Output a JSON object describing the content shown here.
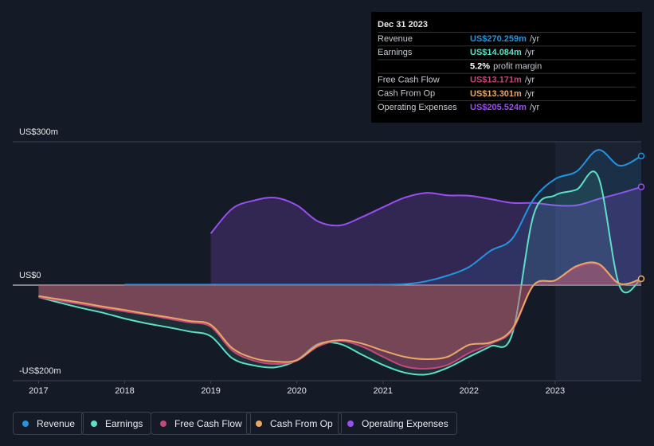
{
  "chart_data": {
    "type": "line",
    "x": [
      2017,
      2017.25,
      2017.5,
      2017.75,
      2018,
      2018.25,
      2018.5,
      2018.75,
      2019,
      2019.25,
      2019.5,
      2019.75,
      2020,
      2020.25,
      2020.5,
      2020.75,
      2021,
      2021.25,
      2021.5,
      2021.75,
      2022,
      2022.25,
      2022.5,
      2022.75,
      2023,
      2023.25,
      2023.5,
      2023.75,
      2024
    ],
    "xlim": [
      2016.7,
      2024.0
    ],
    "xticks": [
      2017,
      2018,
      2019,
      2020,
      2021,
      2022,
      2023
    ],
    "ylim": [
      -200,
      300
    ],
    "yticks": [
      {
        "value": 300,
        "label": "US$300m"
      },
      {
        "value": 0,
        "label": "US$0"
      },
      {
        "value": -200,
        "label": "-US$200m"
      }
    ],
    "series": [
      {
        "name": "Revenue",
        "color": "#2394df",
        "values": [
          null,
          null,
          null,
          null,
          1,
          1,
          1,
          1,
          1,
          1,
          1,
          1,
          1,
          1,
          1,
          1,
          1,
          2,
          8,
          20,
          38,
          72,
          97,
          180,
          222,
          238,
          283,
          250,
          270.259
        ]
      },
      {
        "name": "Earnings",
        "color": "#5de0c6",
        "values": [
          -25,
          -37,
          -48,
          -58,
          -70,
          -80,
          -88,
          -97,
          -107,
          -153,
          -168,
          -172,
          -157,
          -123,
          -123,
          -145,
          -167,
          -183,
          -187,
          -173,
          -150,
          -128,
          -103,
          147,
          188,
          200,
          227,
          -3,
          14.084
        ]
      },
      {
        "name": "Free Cash Flow",
        "color": "#c4487a",
        "values": [
          -25,
          -33,
          -40,
          -48,
          -55,
          -62,
          -70,
          -78,
          -87,
          -137,
          -158,
          -165,
          -158,
          -128,
          -117,
          -128,
          -150,
          -170,
          -175,
          -167,
          -142,
          -123,
          -95,
          0,
          10,
          38,
          43,
          2,
          13.171
        ]
      },
      {
        "name": "Cash From Op",
        "color": "#e8a866",
        "values": [
          -23,
          -30,
          -37,
          -45,
          -52,
          -60,
          -67,
          -75,
          -83,
          -132,
          -153,
          -160,
          -157,
          -125,
          -115,
          -122,
          -137,
          -150,
          -155,
          -150,
          -125,
          -120,
          -92,
          0,
          10,
          40,
          45,
          3,
          13.301
        ]
      },
      {
        "name": "Operating Expenses",
        "color": "#9a4ef0",
        "values": [
          null,
          null,
          null,
          null,
          null,
          null,
          null,
          null,
          108,
          160,
          177,
          183,
          167,
          133,
          125,
          142,
          163,
          183,
          193,
          188,
          187,
          180,
          172,
          172,
          167,
          167,
          180,
          192,
          205.524
        ]
      }
    ],
    "tooltip": {
      "date": "Dec 31 2023",
      "rows": [
        {
          "label": "Revenue",
          "value": "US$270.259m",
          "unit": "/yr"
        },
        {
          "label": "Earnings",
          "value": "US$14.084m",
          "unit": "/yr"
        },
        {
          "value": "5.2%",
          "unit": "profit margin"
        },
        {
          "label": "Free Cash Flow",
          "value": "US$13.171m",
          "unit": "/yr"
        },
        {
          "label": "Cash From Op",
          "value": "US$13.301m",
          "unit": "/yr"
        },
        {
          "label": "Operating Expenses",
          "value": "US$205.524m",
          "unit": "/yr"
        }
      ]
    }
  }
}
